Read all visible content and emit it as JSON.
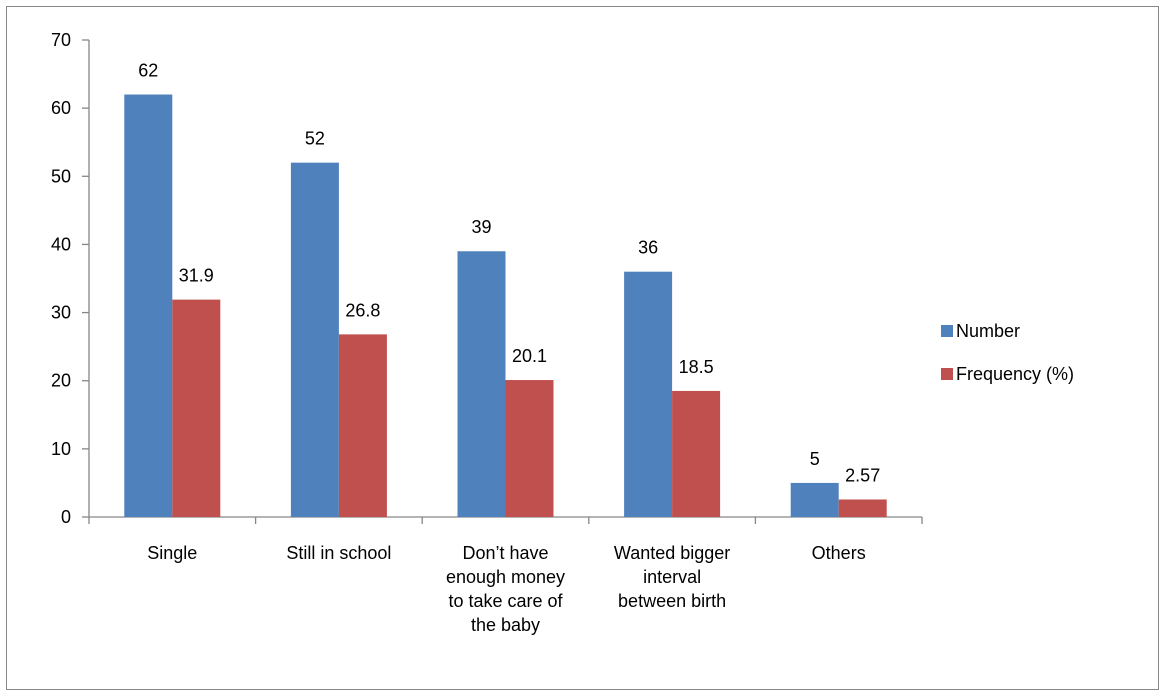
{
  "chart_data": {
    "type": "bar",
    "categories": [
      [
        "Single"
      ],
      [
        "Still in school"
      ],
      [
        "Don’t have",
        "enough money",
        "to take care of",
        "the baby"
      ],
      [
        "Wanted bigger",
        "interval",
        "between birth"
      ],
      [
        "Others"
      ]
    ],
    "series": [
      {
        "name": "Number",
        "values": [
          62,
          52,
          39,
          36,
          5
        ],
        "labels": [
          "62",
          "52",
          "39",
          "36",
          "5"
        ],
        "color": "#4F81BD"
      },
      {
        "name": "Frequency (%)",
        "values": [
          31.9,
          26.8,
          20.1,
          18.5,
          2.57
        ],
        "labels": [
          "31.9",
          "26.8",
          "20.1",
          "18.5",
          "2.57"
        ],
        "color": "#C0504D"
      }
    ],
    "ylim": [
      0,
      70
    ],
    "yticks": [
      "0",
      "10",
      "20",
      "30",
      "40",
      "50",
      "60",
      "70"
    ],
    "ytick_values": [
      0,
      10,
      20,
      30,
      40,
      50,
      60,
      70
    ],
    "grid": false,
    "legend_position": "right"
  }
}
